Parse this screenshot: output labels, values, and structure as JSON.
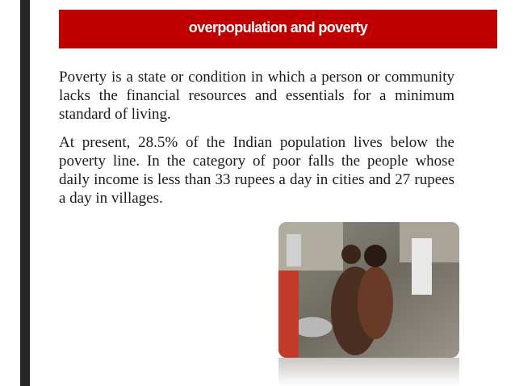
{
  "header": {
    "title": "overpopulation and poverty"
  },
  "body": {
    "paragraphs": [
      "Poverty is a state or condition in which a person or community lacks the financial resources and essentials for a minimum standard of living.",
      "At present, 28.5% of the Indian population lives below the poverty line. In the category of poor falls the people whose daily income is less than 33 rupees a day in cities and 27 rupees a day in villages."
    ]
  }
}
